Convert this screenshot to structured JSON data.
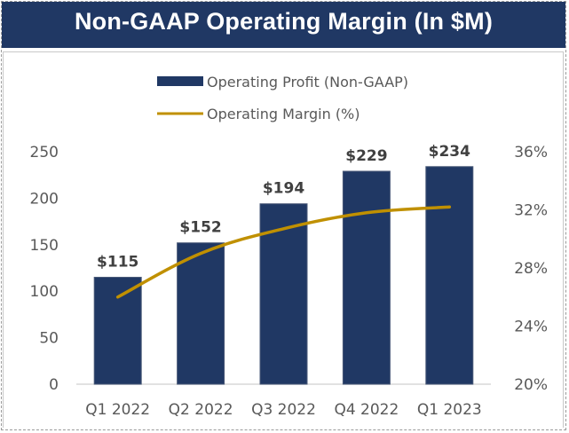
{
  "chart_data": {
    "type": "bar",
    "title": "Non-GAAP Operating Margin (In $M)",
    "categories": [
      "Q1 2022",
      "Q2 2022",
      "Q3 2022",
      "Q4 2022",
      "Q1 2023"
    ],
    "series": [
      {
        "name": "Operating Profit (Non-GAAP)",
        "type": "bar",
        "axis": "left",
        "color": "#203864",
        "values": [
          115,
          152,
          194,
          229,
          234
        ],
        "data_labels": [
          "$115",
          "$152",
          "$194",
          "$229",
          "$234"
        ]
      },
      {
        "name": "Operating Margin (%)",
        "type": "line",
        "axis": "right",
        "color": "#C09000",
        "values": [
          26.0,
          29.0,
          30.7,
          31.8,
          32.2
        ]
      }
    ],
    "yaxis_left": {
      "ylim": [
        0,
        250
      ],
      "ticks": [
        0,
        50,
        100,
        150,
        200,
        250
      ],
      "tick_labels": [
        "0",
        "50",
        "100",
        "150",
        "200",
        "250"
      ]
    },
    "yaxis_right": {
      "ylim": [
        20,
        36
      ],
      "ticks": [
        20,
        24,
        28,
        32,
        36
      ],
      "tick_labels": [
        "20%",
        "24%",
        "28%",
        "32%",
        "36%"
      ]
    },
    "xlabel": "",
    "ylabel": "",
    "grid": false,
    "legend": "top-center"
  }
}
